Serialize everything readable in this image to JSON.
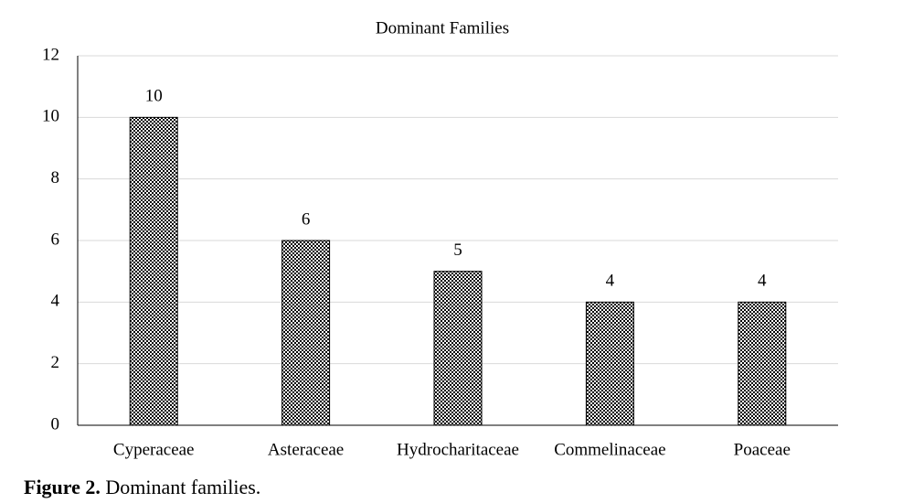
{
  "chart_data": {
    "type": "bar",
    "title": "Dominant Families",
    "categories": [
      "Cyperaceae",
      "Asteraceae",
      "Hydrocharitaceae",
      "Commelinaceae",
      "Poaceae"
    ],
    "values": [
      10,
      6,
      5,
      4,
      4
    ],
    "color": "#000000",
    "ylim": [
      0,
      12
    ],
    "yticks": [
      0,
      2,
      4,
      6,
      8,
      10,
      12
    ],
    "grid": true
  },
  "caption": {
    "label": "Figure 2.",
    "text": "Dominant families."
  }
}
